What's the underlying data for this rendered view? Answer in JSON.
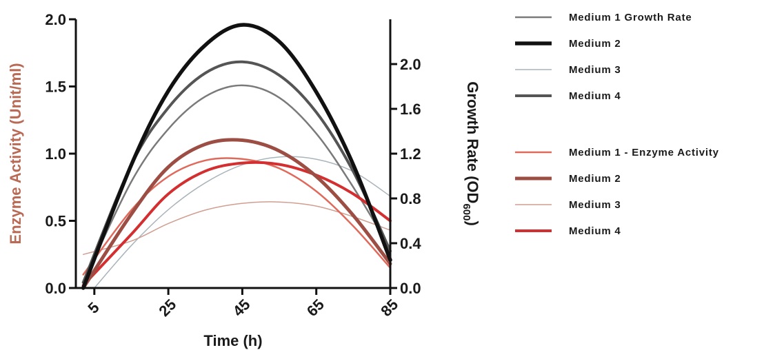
{
  "chart_data": {
    "type": "line",
    "x_axis": {
      "label": "Time (h)",
      "ticks": [
        5,
        25,
        45,
        65,
        85
      ],
      "range": [
        0,
        85
      ]
    },
    "y_left": {
      "label": "Enzyme Activity (Unit/ml)",
      "label_color": "#b86a55",
      "ticks": [
        "0.0",
        "0.5",
        "1.0",
        "1.5",
        "2.0"
      ],
      "range": [
        0,
        2.0
      ]
    },
    "y_right": {
      "label_main": "Growth Rate (OD",
      "label_sub": "600",
      "label_close": ")",
      "ticks": [
        "0.0",
        "0.4",
        "0.8",
        "1.2",
        "1.6",
        "2.0"
      ],
      "range": [
        0,
        2.4
      ]
    },
    "legend_position": "right",
    "legend_groups": [
      {
        "entries": [
          {
            "label": "Medium 1 Growth Rate",
            "color": "#7a7a7a",
            "width": 2.5
          },
          {
            "label": "Medium 2",
            "color": "#111111",
            "width": 5.5
          },
          {
            "label": "Medium 3",
            "color": "#a9b4ba",
            "width": 1.5
          },
          {
            "label": "Medium 4",
            "color": "#555555",
            "width": 4
          }
        ]
      },
      {
        "entries": [
          {
            "label": "Medium 1 - Enzyme Activity",
            "color": "#df6a5c",
            "width": 2.5
          },
          {
            "label": "Medium 2",
            "color": "#9c4e45",
            "width": 5
          },
          {
            "label": "Medium 3",
            "color": "#cf9e90",
            "width": 1.5
          },
          {
            "label": "Medium 4",
            "color": "#d32f30",
            "width": 4
          }
        ]
      }
    ],
    "series": [
      {
        "group": "growth_rate",
        "axis": "right",
        "color": "#7a7a7a",
        "width": 2.5,
        "x": [
          2,
          15,
          25,
          35,
          45,
          55,
          65,
          75,
          85
        ],
        "y": [
          0.05,
          0.95,
          1.42,
          1.71,
          1.81,
          1.7,
          1.38,
          0.9,
          0.35
        ]
      },
      {
        "group": "growth_rate",
        "axis": "right",
        "color": "#111111",
        "width": 5.5,
        "x": [
          2,
          15,
          25,
          35,
          45,
          55,
          65,
          75,
          85
        ],
        "y": [
          0.0,
          1.1,
          1.76,
          2.17,
          2.35,
          2.2,
          1.75,
          1.1,
          0.25
        ]
      },
      {
        "group": "growth_rate",
        "axis": "right",
        "color": "#a9b4ba",
        "width": 1.5,
        "x": [
          5,
          15,
          25,
          35,
          45,
          55,
          65,
          75,
          85
        ],
        "y": [
          0.0,
          0.38,
          0.7,
          0.94,
          1.1,
          1.17,
          1.15,
          1.04,
          0.82
        ]
      },
      {
        "group": "growth_rate",
        "axis": "right",
        "color": "#555555",
        "width": 4,
        "x": [
          2,
          15,
          25,
          35,
          45,
          55,
          65,
          75,
          85
        ],
        "y": [
          0.05,
          1.1,
          1.61,
          1.92,
          2.02,
          1.9,
          1.57,
          1.04,
          0.33
        ]
      },
      {
        "group": "enzyme_activity",
        "axis": "left",
        "color": "#df6a5c",
        "width": 2.5,
        "x": [
          2,
          15,
          25,
          35,
          45,
          55,
          65,
          75,
          85
        ],
        "y": [
          0.1,
          0.58,
          0.83,
          0.95,
          0.96,
          0.89,
          0.72,
          0.46,
          0.15
        ]
      },
      {
        "group": "enzyme_activity",
        "axis": "left",
        "color": "#9c4e45",
        "width": 5,
        "x": [
          2,
          15,
          25,
          35,
          45,
          55,
          65,
          75,
          85
        ],
        "y": [
          0.0,
          0.55,
          0.9,
          1.07,
          1.1,
          1.02,
          0.83,
          0.54,
          0.18
        ]
      },
      {
        "group": "enzyme_activity",
        "axis": "left",
        "color": "#cf9e90",
        "width": 1.5,
        "x": [
          2,
          15,
          25,
          35,
          45,
          55,
          65,
          75,
          85
        ],
        "y": [
          0.25,
          0.35,
          0.48,
          0.58,
          0.63,
          0.64,
          0.61,
          0.53,
          0.43
        ]
      },
      {
        "group": "enzyme_activity",
        "axis": "left",
        "color": "#d32f30",
        "width": 4,
        "x": [
          2,
          15,
          25,
          35,
          45,
          55,
          65,
          75,
          85
        ],
        "y": [
          0.02,
          0.4,
          0.7,
          0.87,
          0.93,
          0.92,
          0.84,
          0.7,
          0.5
        ]
      }
    ]
  }
}
